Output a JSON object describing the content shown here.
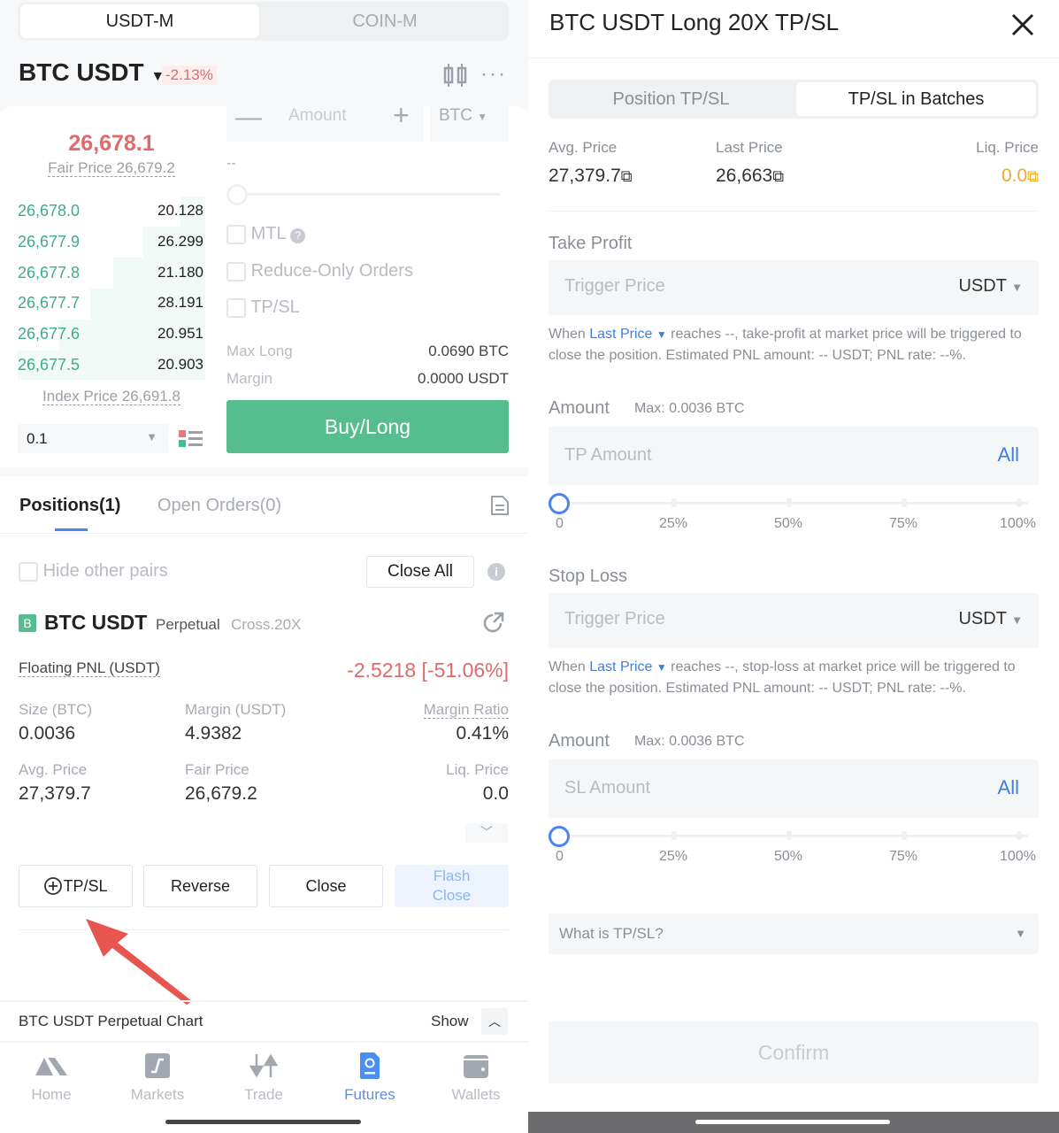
{
  "left": {
    "market_tabs": [
      "USDT-M",
      "COIN-M"
    ],
    "pair": "BTC USDT",
    "change": "-2.13%",
    "orderbook": {
      "last_price": "26,678.1",
      "fair_price": "Fair Price 26,679.2",
      "bids": [
        [
          "26,678.0",
          "20.128"
        ],
        [
          "26,677.9",
          "26.299"
        ],
        [
          "26,677.8",
          "21.180"
        ],
        [
          "26,677.7",
          "28.191"
        ],
        [
          "26,677.6",
          "20.951"
        ],
        [
          "26,677.5",
          "20.903"
        ]
      ],
      "index_price": "Index Price 26,691.8",
      "precision": "0.1"
    },
    "order_form": {
      "amount_placeholder": "Amount",
      "unit": "BTC",
      "dash": "--",
      "mtl": "MTL",
      "reduce_only": "Reduce-Only Orders",
      "tpsl": "TP/SL",
      "max_long_label": "Max Long",
      "max_long_value": "0.0690 BTC",
      "margin_label": "Margin",
      "margin_value": "0.0000 USDT",
      "buy_label": "Buy/Long"
    },
    "tabs": [
      "Positions(1)",
      "Open Orders(0)"
    ],
    "hide_other_pairs": "Hide other pairs",
    "close_all": "Close All",
    "position": {
      "badge": "B",
      "pair": "BTC USDT",
      "type": "Perpetual",
      "mode": "Cross.20X",
      "pnl_label": "Floating PNL (USDT)",
      "pnl_value": "-2.5218 [-51.06%]",
      "size_label": "Size (BTC)",
      "size": "0.0036",
      "margin_label": "Margin (USDT)",
      "margin": "4.9382",
      "ratio_label": "Margin Ratio",
      "ratio": "0.41%",
      "avg_label": "Avg. Price",
      "avg": "27,379.7",
      "fair_label": "Fair Price",
      "fair": "26,679.2",
      "liq_label": "Liq. Price",
      "liq": "0.0",
      "buttons": {
        "tpsl": "TP/SL",
        "reverse": "Reverse",
        "close": "Close",
        "flash_close": "Flash Close"
      }
    },
    "chart_bar": {
      "label": "BTC USDT Perpetual Chart",
      "show": "Show"
    },
    "nav": [
      {
        "label": "Home",
        "icon": "home-icon"
      },
      {
        "label": "Markets",
        "icon": "markets-icon"
      },
      {
        "label": "Trade",
        "icon": "trade-icon"
      },
      {
        "label": "Futures",
        "icon": "futures-icon",
        "active": true
      },
      {
        "label": "Wallets",
        "icon": "wallet-icon"
      }
    ]
  },
  "right": {
    "title": "BTC USDT Long 20X TP/SL",
    "tabs": [
      "Position TP/SL",
      "TP/SL in Batches"
    ],
    "active_tab": "TP/SL in Batches",
    "stats": {
      "avg_label": "Avg. Price",
      "avg": "27,379.7",
      "last_label": "Last Price",
      "last": "26,663",
      "liq_label": "Liq. Price",
      "liq": "0.0"
    },
    "take_profit": {
      "heading": "Take Profit",
      "trigger_placeholder": "Trigger Price",
      "unit": "USDT",
      "desc_when": "When ",
      "desc_link": "Last Price",
      "desc_rest": " reaches --, take-profit at market price will be triggered to close the position. Estimated PNL amount: -- USDT; PNL rate: --%.",
      "amount_label": "Amount",
      "max": "Max:  0.0036 BTC",
      "amount_placeholder": "TP Amount",
      "all": "All",
      "slider_value": 0
    },
    "stop_loss": {
      "heading": "Stop Loss",
      "trigger_placeholder": "Trigger Price",
      "unit": "USDT",
      "desc_when": "When ",
      "desc_link": "Last Price",
      "desc_rest": " reaches --, stop-loss at market price will be triggered to close the position. Estimated PNL amount: -- USDT; PNL rate: --%.",
      "amount_label": "Amount",
      "max": "Max:  0.0036 BTC",
      "amount_placeholder": "SL Amount",
      "all": "All",
      "slider_value": 0
    },
    "slider_labels": [
      "0",
      "25%",
      "50%",
      "75%",
      "100%"
    ],
    "faq": "What is TP/SL?",
    "confirm": "Confirm"
  },
  "colors": {
    "green": "#56bd8f",
    "red": "#e06a6a",
    "blue": "#3d7fe0",
    "liq": "#f0a929"
  }
}
